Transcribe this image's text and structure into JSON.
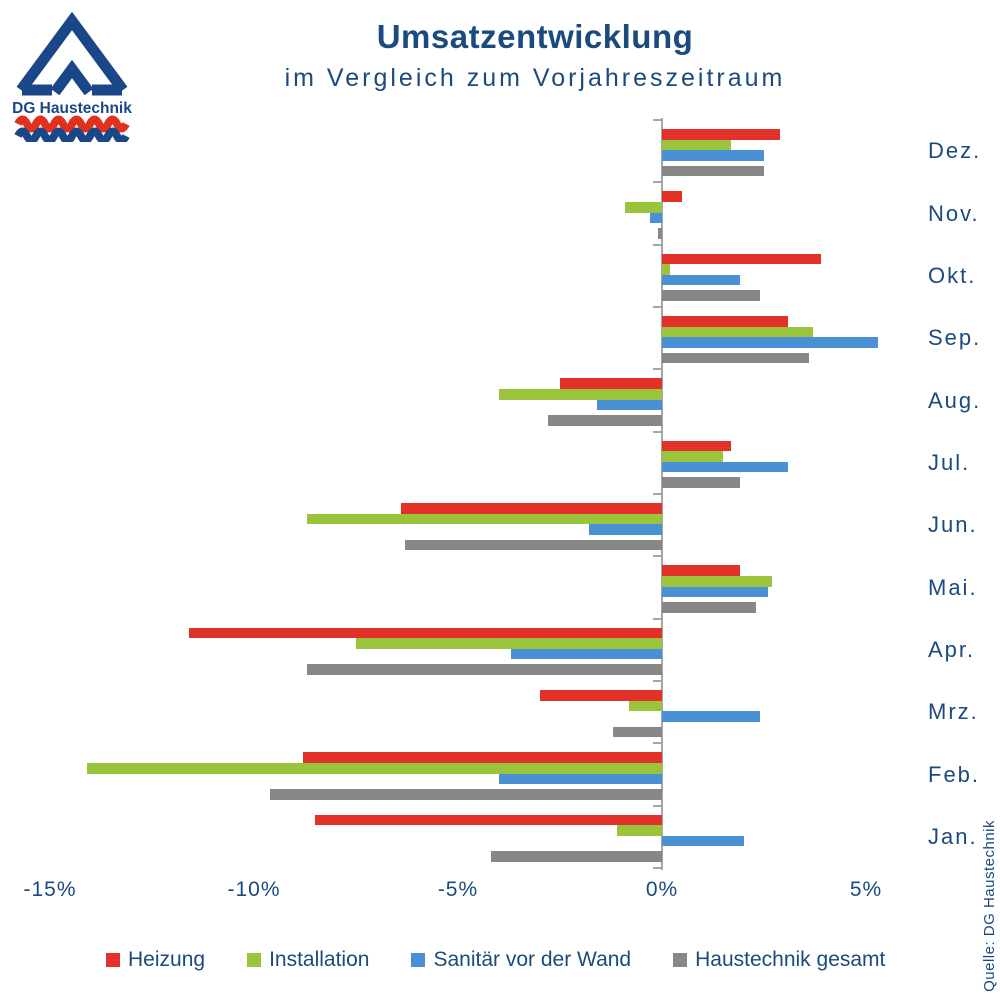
{
  "logo": {
    "name": "DG Haustechnik"
  },
  "header": {
    "title": "Umsatzentwicklung",
    "subtitle": "im Vergleich zum Vorjahreszeitraum"
  },
  "source_note": "Quelle: DG Haustechnik",
  "colors": {
    "heizung": "#e23128",
    "installation": "#9ac43c",
    "sanitaer_vor_der_wand": "#4a90d5",
    "haustechnik_gesamt": "#878787",
    "text_blue": "#1b4a7e",
    "axis_gray": "#a6a6a6",
    "logo_navy": "#1a4788",
    "logo_red": "#e0301e"
  },
  "chart_data": {
    "type": "bar",
    "orientation": "horizontal",
    "title": "Umsatzentwicklung",
    "subtitle": "im Vergleich zum Vorjahreszeitraum",
    "unit": "%",
    "xlim": [
      -15,
      5
    ],
    "x_ticks": [
      "-15%",
      "-10%",
      "-5%",
      "0%",
      "5%"
    ],
    "grid": false,
    "legend_position": "bottom",
    "categories_top_to_bottom": [
      "Dez.",
      "Nov.",
      "Okt.",
      "Sep.",
      "Aug.",
      "Jul.",
      "Jun.",
      "Mai.",
      "Apr.",
      "Mrz.",
      "Feb.",
      "Jan."
    ],
    "series": [
      {
        "name": "Heizung",
        "color": "#e23128",
        "values": [
          2.9,
          0.5,
          3.9,
          3.1,
          -2.5,
          1.7,
          -6.4,
          1.9,
          -11.6,
          -3.0,
          -8.8,
          -8.5
        ]
      },
      {
        "name": "Installation",
        "color": "#9ac43c",
        "values": [
          1.7,
          -0.9,
          0.2,
          3.7,
          -4.0,
          1.5,
          -8.7,
          2.7,
          -7.5,
          -0.8,
          -14.1,
          -1.1
        ]
      },
      {
        "name": "Sanitär vor der Wand",
        "color": "#4a90d5",
        "values": [
          2.5,
          -0.3,
          1.9,
          5.3,
          -1.6,
          3.1,
          -1.8,
          2.6,
          -3.7,
          2.4,
          -4.0,
          2.0
        ]
      },
      {
        "name": "Haustechnik gesamt",
        "color": "#878787",
        "values": [
          2.5,
          -0.1,
          2.4,
          3.6,
          -2.8,
          1.9,
          -6.3,
          2.3,
          -8.7,
          -1.2,
          -9.6,
          -4.2
        ]
      }
    ]
  }
}
